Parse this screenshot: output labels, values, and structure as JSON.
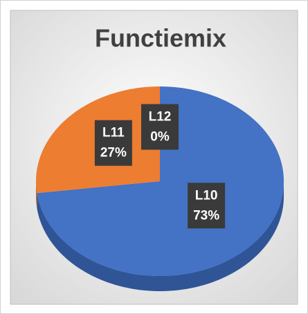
{
  "chart_data": {
    "type": "pie",
    "title": "Functiemix",
    "categories": [
      "L10",
      "L11",
      "L12"
    ],
    "values": [
      73,
      27,
      0
    ],
    "value_labels": [
      "73%",
      "27%",
      "0%"
    ],
    "colors": [
      "#4472c4",
      "#ed7d31",
      "#a5a5a5"
    ],
    "side_colors": [
      "#2f5597",
      "#b85f22",
      "#7f7f7f"
    ]
  }
}
